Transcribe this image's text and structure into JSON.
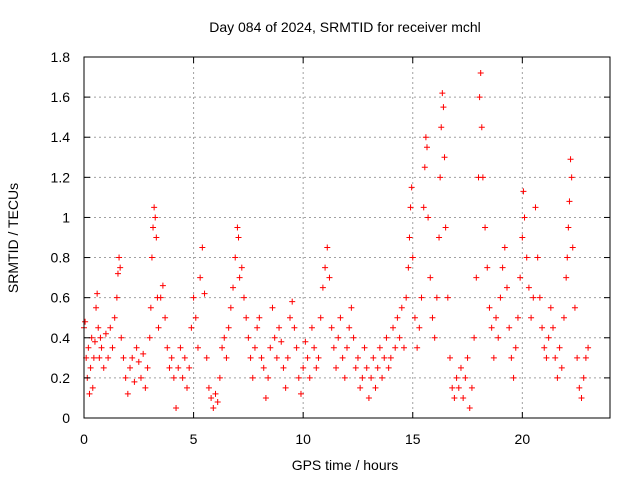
{
  "chart_data": {
    "type": "scatter",
    "title": "Day 084 of 2024, SRMTID for receiver mchl",
    "xlabel": "GPS time / hours",
    "ylabel": "SRMTID / TECUs",
    "xlim": [
      0,
      24
    ],
    "ylim": [
      0,
      1.8
    ],
    "xticks": [
      0,
      5,
      10,
      15,
      20
    ],
    "yticks": [
      0,
      0.2,
      0.4,
      0.6,
      0.8,
      1,
      1.2,
      1.4,
      1.6,
      1.8
    ],
    "xtick_labels": [
      "0",
      "5",
      "10",
      "15",
      "20"
    ],
    "ytick_labels": [
      "0",
      "0.2",
      "0.4",
      "0.6",
      "0.8",
      "1",
      "1.2",
      "1.4",
      "1.6",
      "1.8"
    ],
    "grid": true,
    "marker": "+",
    "color": "#ff0000",
    "series": [
      {
        "name": "SRMTID",
        "points": [
          [
            0.0,
            0.45
          ],
          [
            0.05,
            0.48
          ],
          [
            0.1,
            0.3
          ],
          [
            0.15,
            0.2
          ],
          [
            0.2,
            0.35
          ],
          [
            0.25,
            0.12
          ],
          [
            0.3,
            0.25
          ],
          [
            0.35,
            0.4
          ],
          [
            0.4,
            0.15
          ],
          [
            0.45,
            0.3
          ],
          [
            0.5,
            0.38
          ],
          [
            0.55,
            0.55
          ],
          [
            0.6,
            0.62
          ],
          [
            0.65,
            0.45
          ],
          [
            0.7,
            0.3
          ],
          [
            0.75,
            0.4
          ],
          [
            0.8,
            0.35
          ],
          [
            0.9,
            0.25
          ],
          [
            1.0,
            0.42
          ],
          [
            1.1,
            0.3
          ],
          [
            1.2,
            0.45
          ],
          [
            1.3,
            0.35
          ],
          [
            1.4,
            0.5
          ],
          [
            1.5,
            0.6
          ],
          [
            1.55,
            0.72
          ],
          [
            1.6,
            0.8
          ],
          [
            1.65,
            0.75
          ],
          [
            1.7,
            0.4
          ],
          [
            1.8,
            0.3
          ],
          [
            1.9,
            0.2
          ],
          [
            2.0,
            0.12
          ],
          [
            2.1,
            0.25
          ],
          [
            2.2,
            0.3
          ],
          [
            2.3,
            0.18
          ],
          [
            2.4,
            0.35
          ],
          [
            2.5,
            0.28
          ],
          [
            2.6,
            0.2
          ],
          [
            2.7,
            0.32
          ],
          [
            2.8,
            0.15
          ],
          [
            2.9,
            0.25
          ],
          [
            3.0,
            0.4
          ],
          [
            3.05,
            0.55
          ],
          [
            3.1,
            0.8
          ],
          [
            3.15,
            0.95
          ],
          [
            3.2,
            1.05
          ],
          [
            3.25,
            1.0
          ],
          [
            3.3,
            0.9
          ],
          [
            3.35,
            0.6
          ],
          [
            3.4,
            0.45
          ],
          [
            3.5,
            0.6
          ],
          [
            3.6,
            0.66
          ],
          [
            3.7,
            0.5
          ],
          [
            3.8,
            0.35
          ],
          [
            3.9,
            0.25
          ],
          [
            4.0,
            0.3
          ],
          [
            4.1,
            0.2
          ],
          [
            4.2,
            0.05
          ],
          [
            4.3,
            0.25
          ],
          [
            4.4,
            0.35
          ],
          [
            4.5,
            0.2
          ],
          [
            4.6,
            0.3
          ],
          [
            4.7,
            0.15
          ],
          [
            4.8,
            0.25
          ],
          [
            4.9,
            0.45
          ],
          [
            5.0,
            0.6
          ],
          [
            5.1,
            0.5
          ],
          [
            5.2,
            0.35
          ],
          [
            5.3,
            0.7
          ],
          [
            5.4,
            0.85
          ],
          [
            5.5,
            0.62
          ],
          [
            5.6,
            0.3
          ],
          [
            5.7,
            0.15
          ],
          [
            5.8,
            0.1
          ],
          [
            5.9,
            0.05
          ],
          [
            6.0,
            0.12
          ],
          [
            6.1,
            0.08
          ],
          [
            6.2,
            0.2
          ],
          [
            6.3,
            0.35
          ],
          [
            6.4,
            0.4
          ],
          [
            6.5,
            0.3
          ],
          [
            6.6,
            0.45
          ],
          [
            6.7,
            0.55
          ],
          [
            6.8,
            0.65
          ],
          [
            6.9,
            0.8
          ],
          [
            7.0,
            0.95
          ],
          [
            7.05,
            0.9
          ],
          [
            7.1,
            0.7
          ],
          [
            7.2,
            0.75
          ],
          [
            7.3,
            0.6
          ],
          [
            7.4,
            0.5
          ],
          [
            7.5,
            0.4
          ],
          [
            7.6,
            0.3
          ],
          [
            7.7,
            0.2
          ],
          [
            7.8,
            0.35
          ],
          [
            7.9,
            0.45
          ],
          [
            8.0,
            0.5
          ],
          [
            8.1,
            0.3
          ],
          [
            8.2,
            0.25
          ],
          [
            8.3,
            0.1
          ],
          [
            8.4,
            0.2
          ],
          [
            8.5,
            0.35
          ],
          [
            8.6,
            0.55
          ],
          [
            8.7,
            0.4
          ],
          [
            8.8,
            0.3
          ],
          [
            8.9,
            0.45
          ],
          [
            9.0,
            0.38
          ],
          [
            9.1,
            0.25
          ],
          [
            9.2,
            0.15
          ],
          [
            9.3,
            0.3
          ],
          [
            9.4,
            0.5
          ],
          [
            9.5,
            0.58
          ],
          [
            9.6,
            0.45
          ],
          [
            9.7,
            0.35
          ],
          [
            9.8,
            0.2
          ],
          [
            9.9,
            0.12
          ],
          [
            10.0,
            0.25
          ],
          [
            10.1,
            0.38
          ],
          [
            10.2,
            0.3
          ],
          [
            10.3,
            0.2
          ],
          [
            10.4,
            0.45
          ],
          [
            10.5,
            0.35
          ],
          [
            10.6,
            0.25
          ],
          [
            10.7,
            0.3
          ],
          [
            10.8,
            0.5
          ],
          [
            10.9,
            0.65
          ],
          [
            11.0,
            0.75
          ],
          [
            11.1,
            0.85
          ],
          [
            11.2,
            0.7
          ],
          [
            11.3,
            0.45
          ],
          [
            11.4,
            0.35
          ],
          [
            11.5,
            0.25
          ],
          [
            11.6,
            0.4
          ],
          [
            11.7,
            0.5
          ],
          [
            11.8,
            0.3
          ],
          [
            11.9,
            0.2
          ],
          [
            12.0,
            0.35
          ],
          [
            12.1,
            0.45
          ],
          [
            12.2,
            0.55
          ],
          [
            12.3,
            0.4
          ],
          [
            12.4,
            0.25
          ],
          [
            12.5,
            0.3
          ],
          [
            12.6,
            0.15
          ],
          [
            12.7,
            0.2
          ],
          [
            12.8,
            0.35
          ],
          [
            12.9,
            0.25
          ],
          [
            13.0,
            0.1
          ],
          [
            13.1,
            0.2
          ],
          [
            13.2,
            0.3
          ],
          [
            13.3,
            0.15
          ],
          [
            13.4,
            0.25
          ],
          [
            13.5,
            0.35
          ],
          [
            13.6,
            0.2
          ],
          [
            13.7,
            0.3
          ],
          [
            13.8,
            0.4
          ],
          [
            13.9,
            0.25
          ],
          [
            14.0,
            0.3
          ],
          [
            14.1,
            0.45
          ],
          [
            14.2,
            0.35
          ],
          [
            14.3,
            0.5
          ],
          [
            14.4,
            0.4
          ],
          [
            14.5,
            0.55
          ],
          [
            14.6,
            0.35
          ],
          [
            14.7,
            0.6
          ],
          [
            14.8,
            0.75
          ],
          [
            14.85,
            0.9
          ],
          [
            14.9,
            1.05
          ],
          [
            14.95,
            1.15
          ],
          [
            15.0,
            0.8
          ],
          [
            15.1,
            0.5
          ],
          [
            15.2,
            0.35
          ],
          [
            15.3,
            0.45
          ],
          [
            15.4,
            0.6
          ],
          [
            15.5,
            1.05
          ],
          [
            15.55,
            1.25
          ],
          [
            15.6,
            1.4
          ],
          [
            15.65,
            1.35
          ],
          [
            15.7,
            1.0
          ],
          [
            15.8,
            0.7
          ],
          [
            15.9,
            0.5
          ],
          [
            16.0,
            0.4
          ],
          [
            16.1,
            0.6
          ],
          [
            16.2,
            0.9
          ],
          [
            16.25,
            1.2
          ],
          [
            16.3,
            1.45
          ],
          [
            16.35,
            1.62
          ],
          [
            16.4,
            1.55
          ],
          [
            16.45,
            1.3
          ],
          [
            16.5,
            0.95
          ],
          [
            16.6,
            0.6
          ],
          [
            16.7,
            0.3
          ],
          [
            16.8,
            0.15
          ],
          [
            16.9,
            0.1
          ],
          [
            17.0,
            0.2
          ],
          [
            17.1,
            0.15
          ],
          [
            17.2,
            0.25
          ],
          [
            17.3,
            0.1
          ],
          [
            17.4,
            0.2
          ],
          [
            17.5,
            0.3
          ],
          [
            17.6,
            0.05
          ],
          [
            17.7,
            0.15
          ],
          [
            17.8,
            0.4
          ],
          [
            17.9,
            0.7
          ],
          [
            18.0,
            1.2
          ],
          [
            18.05,
            1.6
          ],
          [
            18.1,
            1.72
          ],
          [
            18.15,
            1.45
          ],
          [
            18.2,
            1.2
          ],
          [
            18.3,
            0.95
          ],
          [
            18.4,
            0.75
          ],
          [
            18.5,
            0.55
          ],
          [
            18.6,
            0.45
          ],
          [
            18.7,
            0.3
          ],
          [
            18.8,
            0.5
          ],
          [
            18.9,
            0.4
          ],
          [
            19.0,
            0.6
          ],
          [
            19.1,
            0.75
          ],
          [
            19.2,
            0.85
          ],
          [
            19.3,
            0.65
          ],
          [
            19.4,
            0.45
          ],
          [
            19.5,
            0.3
          ],
          [
            19.6,
            0.2
          ],
          [
            19.7,
            0.35
          ],
          [
            19.8,
            0.5
          ],
          [
            19.9,
            0.7
          ],
          [
            20.0,
            0.9
          ],
          [
            20.05,
            1.13
          ],
          [
            20.1,
            1.0
          ],
          [
            20.2,
            0.8
          ],
          [
            20.3,
            0.65
          ],
          [
            20.4,
            0.5
          ],
          [
            20.5,
            0.6
          ],
          [
            20.6,
            1.05
          ],
          [
            20.7,
            0.8
          ],
          [
            20.8,
            0.6
          ],
          [
            20.9,
            0.45
          ],
          [
            21.0,
            0.35
          ],
          [
            21.1,
            0.3
          ],
          [
            21.2,
            0.4
          ],
          [
            21.3,
            0.55
          ],
          [
            21.4,
            0.45
          ],
          [
            21.5,
            0.3
          ],
          [
            21.6,
            0.2
          ],
          [
            21.7,
            0.35
          ],
          [
            21.8,
            0.25
          ],
          [
            21.9,
            0.5
          ],
          [
            22.0,
            0.7
          ],
          [
            22.05,
            0.8
          ],
          [
            22.1,
            0.95
          ],
          [
            22.15,
            1.08
          ],
          [
            22.2,
            1.29
          ],
          [
            22.25,
            1.2
          ],
          [
            22.3,
            0.85
          ],
          [
            22.4,
            0.55
          ],
          [
            22.5,
            0.3
          ],
          [
            22.6,
            0.15
          ],
          [
            22.7,
            0.1
          ],
          [
            22.8,
            0.2
          ],
          [
            22.9,
            0.3
          ],
          [
            23.0,
            0.35
          ]
        ]
      }
    ]
  }
}
